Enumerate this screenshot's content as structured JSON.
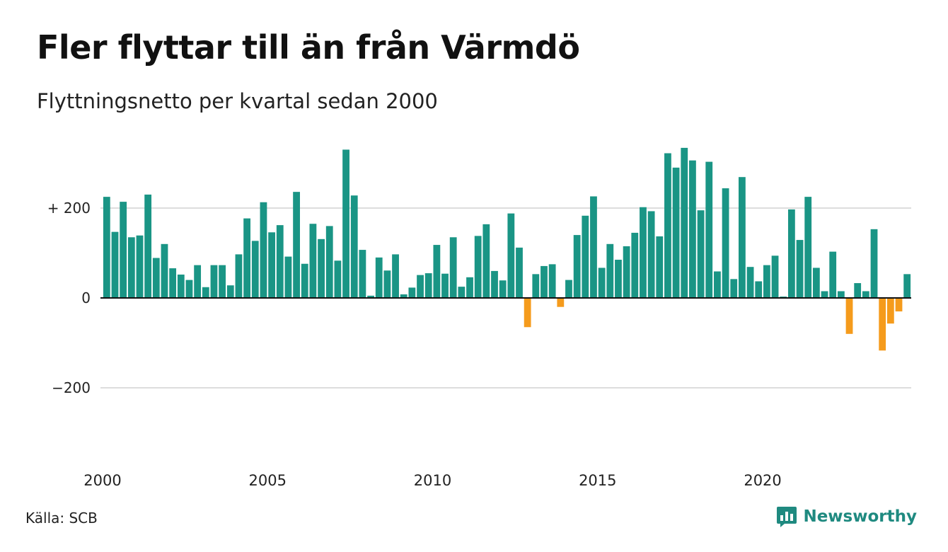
{
  "title": "Fler flyttar till än från Värmdö",
  "subtitle": "Flyttningsnetto per kvartal sedan 2000",
  "source": "Källa: SCB",
  "brand": {
    "name": "Newsworthy",
    "icon": "newsworthy-logo-icon",
    "color": "#1f8a80"
  },
  "colors": {
    "positive": "#1a9585",
    "negative": "#f59b1c",
    "gridline": "#dddddd",
    "zeroline": "#111111"
  },
  "chart_data": {
    "type": "bar",
    "title": "Fler flyttar till än från Värmdö",
    "subtitle": "Flyttningsnetto per kvartal sedan 2000",
    "xlabel": "",
    "ylabel": "",
    "ylim": [
      -350,
      350
    ],
    "grid": true,
    "yticks": [
      {
        "value": 200,
        "label": "+ 200"
      },
      {
        "value": 0,
        "label": "0"
      },
      {
        "value": -200,
        "label": "−200"
      }
    ],
    "xticks": [
      {
        "value": 2000,
        "label": "2000"
      },
      {
        "value": 2005,
        "label": "2005"
      },
      {
        "value": 2010,
        "label": "2010"
      },
      {
        "value": 2015,
        "label": "2015"
      },
      {
        "value": 2020,
        "label": "2020"
      }
    ],
    "start_year": 2000,
    "quarters_per_year": 4,
    "values": [
      225,
      147,
      214,
      135,
      139,
      230,
      89,
      120,
      66,
      52,
      40,
      73,
      24,
      73,
      73,
      28,
      97,
      177,
      127,
      213,
      146,
      162,
      92,
      236,
      76,
      165,
      131,
      160,
      83,
      330,
      228,
      107,
      5,
      90,
      61,
      97,
      8,
      23,
      51,
      55,
      118,
      54,
      135,
      25,
      46,
      138,
      164,
      60,
      39,
      188,
      112,
      -65,
      53,
      71,
      75,
      -20,
      40,
      140,
      183,
      226,
      67,
      120,
      85,
      115,
      145,
      202,
      193,
      137,
      322,
      290,
      334,
      306,
      195,
      303,
      59,
      244,
      42,
      269,
      69,
      37,
      73,
      94,
      3,
      197,
      129,
      225,
      67,
      15,
      103,
      15,
      -80,
      33,
      15,
      153,
      -117,
      -57,
      -30,
      53
    ]
  }
}
